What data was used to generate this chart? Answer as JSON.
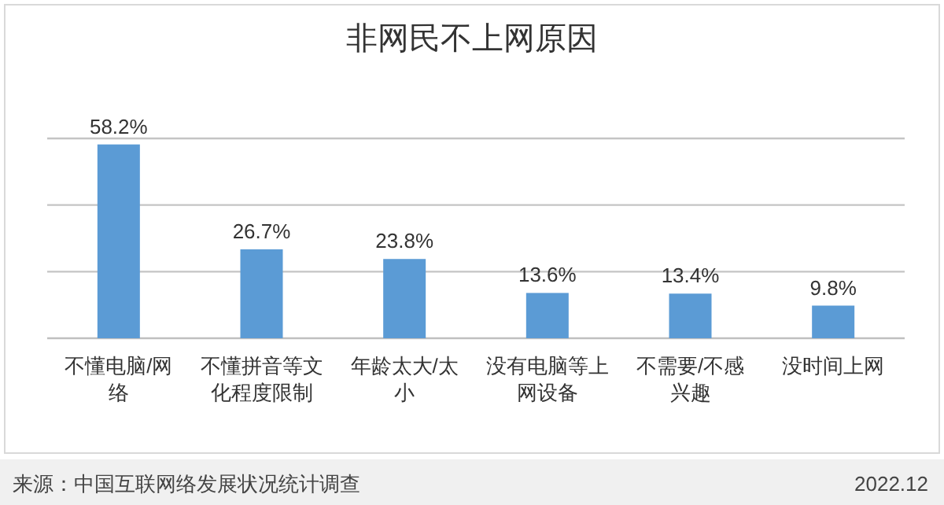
{
  "chart_data": {
    "type": "bar",
    "title": "非网民不上网原因",
    "categories": [
      "不懂电脑/网络",
      "不懂拼音等文化程度限制",
      "年龄太大/太小",
      "没有电脑等上网设备",
      "不需要/不感兴趣",
      "没时间上网"
    ],
    "values": [
      58.2,
      26.7,
      23.8,
      13.6,
      13.4,
      9.8
    ],
    "value_labels": [
      "58.2%",
      "26.7%",
      "23.8%",
      "13.6%",
      "13.4%",
      "9.8%"
    ],
    "color": "#5b9bd5",
    "ylim": [
      0,
      60
    ],
    "yticks": [
      {
        "value": 0,
        "label": null
      },
      {
        "value": 20,
        "label": null
      },
      {
        "value": 40,
        "label": null
      },
      {
        "value": 60,
        "label": null
      }
    ],
    "grid": "y",
    "tick_labels": "x",
    "annotations": [
      "来源：中国互联网络发展状况统计调查",
      "2022.12"
    ]
  }
}
